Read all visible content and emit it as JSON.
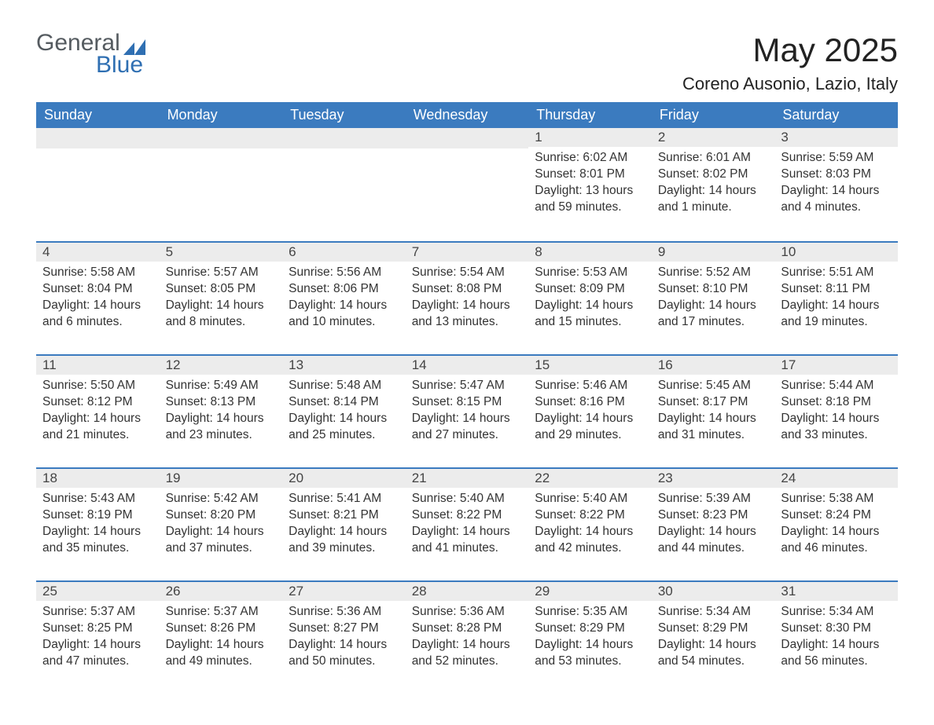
{
  "logo": {
    "word1": "General",
    "word2": "Blue",
    "triangle_color": "#2f6fb2"
  },
  "title": "May 2025",
  "location": "Coreno Ausonio, Lazio, Italy",
  "colors": {
    "header_bg": "#3b7bbf",
    "header_text": "#ffffff",
    "row_divider": "#3b7bbf",
    "daynum_bg": "#ececec",
    "text": "#333333",
    "background": "#ffffff"
  },
  "typography": {
    "title_fontsize": 42,
    "location_fontsize": 22,
    "weekday_fontsize": 18,
    "daynum_fontsize": 17,
    "body_fontsize": 15.5
  },
  "weekdays": [
    "Sunday",
    "Monday",
    "Tuesday",
    "Wednesday",
    "Thursday",
    "Friday",
    "Saturday"
  ],
  "weeks": [
    [
      null,
      null,
      null,
      null,
      {
        "n": "1",
        "sunrise": "6:02 AM",
        "sunset": "8:01 PM",
        "daylight": "13 hours and 59 minutes."
      },
      {
        "n": "2",
        "sunrise": "6:01 AM",
        "sunset": "8:02 PM",
        "daylight": "14 hours and 1 minute."
      },
      {
        "n": "3",
        "sunrise": "5:59 AM",
        "sunset": "8:03 PM",
        "daylight": "14 hours and 4 minutes."
      }
    ],
    [
      {
        "n": "4",
        "sunrise": "5:58 AM",
        "sunset": "8:04 PM",
        "daylight": "14 hours and 6 minutes."
      },
      {
        "n": "5",
        "sunrise": "5:57 AM",
        "sunset": "8:05 PM",
        "daylight": "14 hours and 8 minutes."
      },
      {
        "n": "6",
        "sunrise": "5:56 AM",
        "sunset": "8:06 PM",
        "daylight": "14 hours and 10 minutes."
      },
      {
        "n": "7",
        "sunrise": "5:54 AM",
        "sunset": "8:08 PM",
        "daylight": "14 hours and 13 minutes."
      },
      {
        "n": "8",
        "sunrise": "5:53 AM",
        "sunset": "8:09 PM",
        "daylight": "14 hours and 15 minutes."
      },
      {
        "n": "9",
        "sunrise": "5:52 AM",
        "sunset": "8:10 PM",
        "daylight": "14 hours and 17 minutes."
      },
      {
        "n": "10",
        "sunrise": "5:51 AM",
        "sunset": "8:11 PM",
        "daylight": "14 hours and 19 minutes."
      }
    ],
    [
      {
        "n": "11",
        "sunrise": "5:50 AM",
        "sunset": "8:12 PM",
        "daylight": "14 hours and 21 minutes."
      },
      {
        "n": "12",
        "sunrise": "5:49 AM",
        "sunset": "8:13 PM",
        "daylight": "14 hours and 23 minutes."
      },
      {
        "n": "13",
        "sunrise": "5:48 AM",
        "sunset": "8:14 PM",
        "daylight": "14 hours and 25 minutes."
      },
      {
        "n": "14",
        "sunrise": "5:47 AM",
        "sunset": "8:15 PM",
        "daylight": "14 hours and 27 minutes."
      },
      {
        "n": "15",
        "sunrise": "5:46 AM",
        "sunset": "8:16 PM",
        "daylight": "14 hours and 29 minutes."
      },
      {
        "n": "16",
        "sunrise": "5:45 AM",
        "sunset": "8:17 PM",
        "daylight": "14 hours and 31 minutes."
      },
      {
        "n": "17",
        "sunrise": "5:44 AM",
        "sunset": "8:18 PM",
        "daylight": "14 hours and 33 minutes."
      }
    ],
    [
      {
        "n": "18",
        "sunrise": "5:43 AM",
        "sunset": "8:19 PM",
        "daylight": "14 hours and 35 minutes."
      },
      {
        "n": "19",
        "sunrise": "5:42 AM",
        "sunset": "8:20 PM",
        "daylight": "14 hours and 37 minutes."
      },
      {
        "n": "20",
        "sunrise": "5:41 AM",
        "sunset": "8:21 PM",
        "daylight": "14 hours and 39 minutes."
      },
      {
        "n": "21",
        "sunrise": "5:40 AM",
        "sunset": "8:22 PM",
        "daylight": "14 hours and 41 minutes."
      },
      {
        "n": "22",
        "sunrise": "5:40 AM",
        "sunset": "8:22 PM",
        "daylight": "14 hours and 42 minutes."
      },
      {
        "n": "23",
        "sunrise": "5:39 AM",
        "sunset": "8:23 PM",
        "daylight": "14 hours and 44 minutes."
      },
      {
        "n": "24",
        "sunrise": "5:38 AM",
        "sunset": "8:24 PM",
        "daylight": "14 hours and 46 minutes."
      }
    ],
    [
      {
        "n": "25",
        "sunrise": "5:37 AM",
        "sunset": "8:25 PM",
        "daylight": "14 hours and 47 minutes."
      },
      {
        "n": "26",
        "sunrise": "5:37 AM",
        "sunset": "8:26 PM",
        "daylight": "14 hours and 49 minutes."
      },
      {
        "n": "27",
        "sunrise": "5:36 AM",
        "sunset": "8:27 PM",
        "daylight": "14 hours and 50 minutes."
      },
      {
        "n": "28",
        "sunrise": "5:36 AM",
        "sunset": "8:28 PM",
        "daylight": "14 hours and 52 minutes."
      },
      {
        "n": "29",
        "sunrise": "5:35 AM",
        "sunset": "8:29 PM",
        "daylight": "14 hours and 53 minutes."
      },
      {
        "n": "30",
        "sunrise": "5:34 AM",
        "sunset": "8:29 PM",
        "daylight": "14 hours and 54 minutes."
      },
      {
        "n": "31",
        "sunrise": "5:34 AM",
        "sunset": "8:30 PM",
        "daylight": "14 hours and 56 minutes."
      }
    ]
  ],
  "labels": {
    "sunrise": "Sunrise: ",
    "sunset": "Sunset: ",
    "daylight": "Daylight: "
  }
}
